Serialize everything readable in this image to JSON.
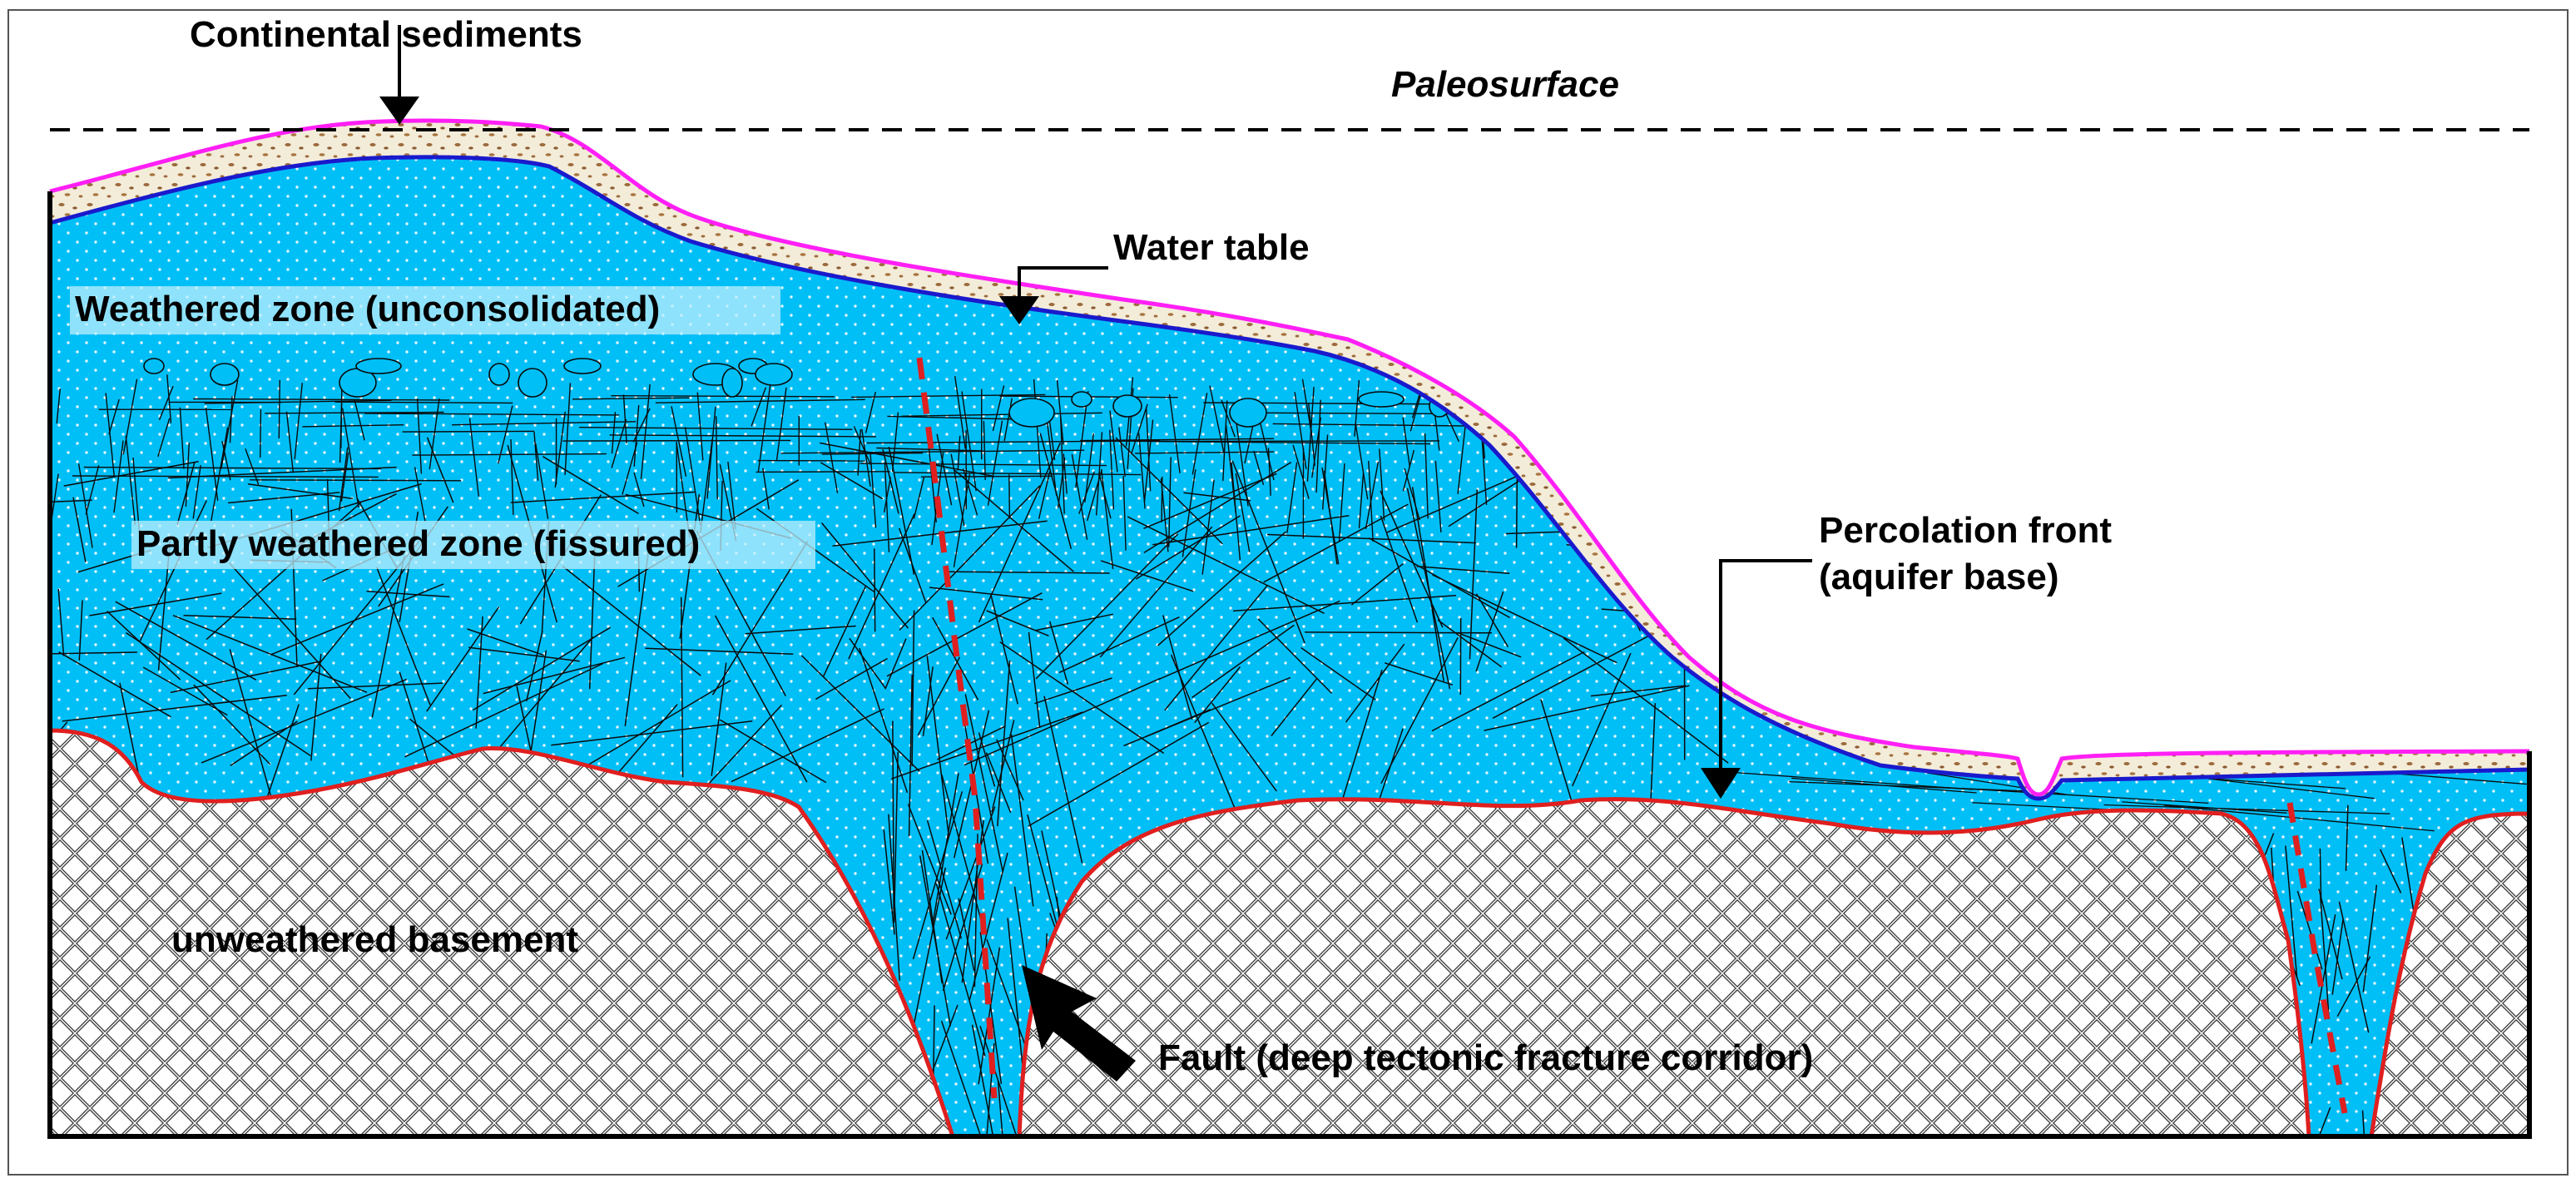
{
  "diagram": {
    "labels": {
      "continental_sediments": "Continental sediments",
      "paleosurface": "Paleosurface",
      "water_table": "Water table",
      "weathered_zone": "Weathered zone (unconsolidated)",
      "partly_weathered_zone": "Partly weathered zone (fissured)",
      "percolation_front_line1": "Percolation front",
      "percolation_front_line2": "(aquifer base)",
      "unweathered_basement": "unweathered basement",
      "fault": "Fault (deep tectonic fracture corridor)"
    },
    "colors": {
      "sediment_fill": "#f3ecd9",
      "sediment_dots": "#9c6a3c",
      "land_surface": "#ff1ff5",
      "water_table": "#1a1acc",
      "aquifer": "#00bff7",
      "basement_outline": "#e01f1f",
      "fault": "#e01f1f",
      "fractures": "#0a0a0a",
      "label_highlight": "#bdeefc"
    }
  }
}
